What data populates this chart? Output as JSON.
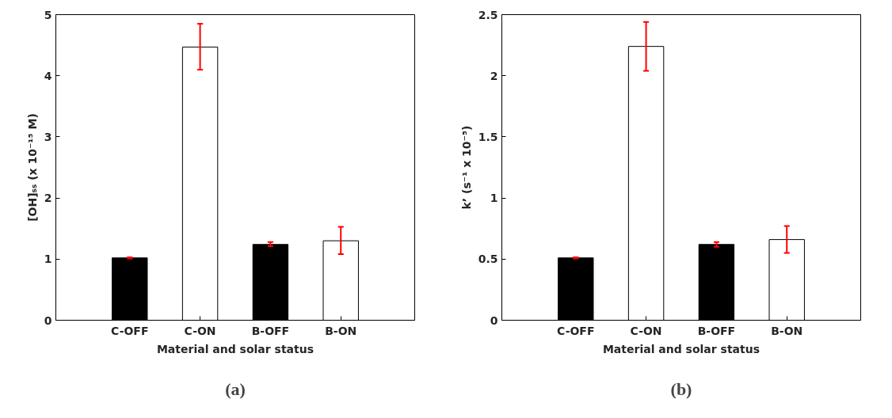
{
  "chart_data": [
    {
      "type": "bar",
      "categories": [
        "C-OFF",
        "C-ON",
        "B-OFF",
        "B-ON"
      ],
      "values": [
        1.02,
        4.47,
        1.24,
        1.3
      ],
      "colors": [
        "#000000",
        "#ffffff",
        "#000000",
        "#ffffff"
      ],
      "errors": [
        0.01,
        [
          4.1,
          4.85
        ],
        [
          1.21,
          1.28
        ],
        [
          1.08,
          1.53
        ]
      ],
      "ylim": [
        0,
        5
      ],
      "yticks": [
        0,
        1,
        2,
        3,
        4,
        5
      ],
      "xlabel": "Material and solar status",
      "ylabel": "[OH]ₛₛ (x 10⁻¹⁵ M)",
      "grid": false,
      "annotations": [
        "(a)"
      ]
    },
    {
      "type": "bar",
      "categories": [
        "C-OFF",
        "C-ON",
        "B-OFF",
        "B-ON"
      ],
      "values": [
        0.51,
        2.24,
        0.62,
        0.66
      ],
      "colors": [
        "#000000",
        "#ffffff",
        "#000000",
        "#ffffff"
      ],
      "errors": [
        0.005,
        [
          2.04,
          2.44
        ],
        [
          0.6,
          0.64
        ],
        [
          0.55,
          0.77
        ]
      ],
      "ylim": [
        0,
        2.5
      ],
      "yticks": [
        0,
        0.5,
        1,
        1.5,
        2,
        2.5
      ],
      "xlabel": "Material and solar status",
      "ylabel": "k’ (s⁻¹ x 10⁻⁵)",
      "grid": false,
      "annotations": [
        "(b)"
      ]
    }
  ]
}
